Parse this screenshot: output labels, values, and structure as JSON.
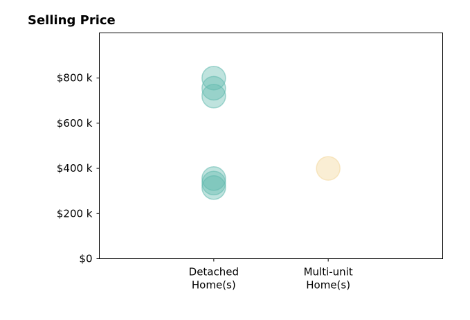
{
  "chart_data": {
    "type": "scatter",
    "title": "Selling Price",
    "xlabel": "",
    "ylabel": "",
    "categories": [
      {
        "lines": [
          "Detached",
          "Home(s)"
        ]
      },
      {
        "lines": [
          "Multi-unit",
          "Home(s)"
        ]
      }
    ],
    "xlim": [
      -1,
      2
    ],
    "ylim": [
      0,
      1000000
    ],
    "yticks": [
      {
        "value": 0,
        "label": "$0"
      },
      {
        "value": 200000,
        "label": "$200 k"
      },
      {
        "value": 400000,
        "label": "$400 k"
      },
      {
        "value": 600000,
        "label": "$600 k"
      },
      {
        "value": 800000,
        "label": "$800 k"
      }
    ],
    "grid": false,
    "series": [
      {
        "category_index": 0,
        "color": "#5fb8ad",
        "opacity": 0.4,
        "values": [
          800000,
          755000,
          720000,
          355000,
          335000,
          315000
        ]
      },
      {
        "category_index": 1,
        "color": "#f3d9a0",
        "opacity": 0.45,
        "values": [
          400000
        ]
      }
    ]
  }
}
